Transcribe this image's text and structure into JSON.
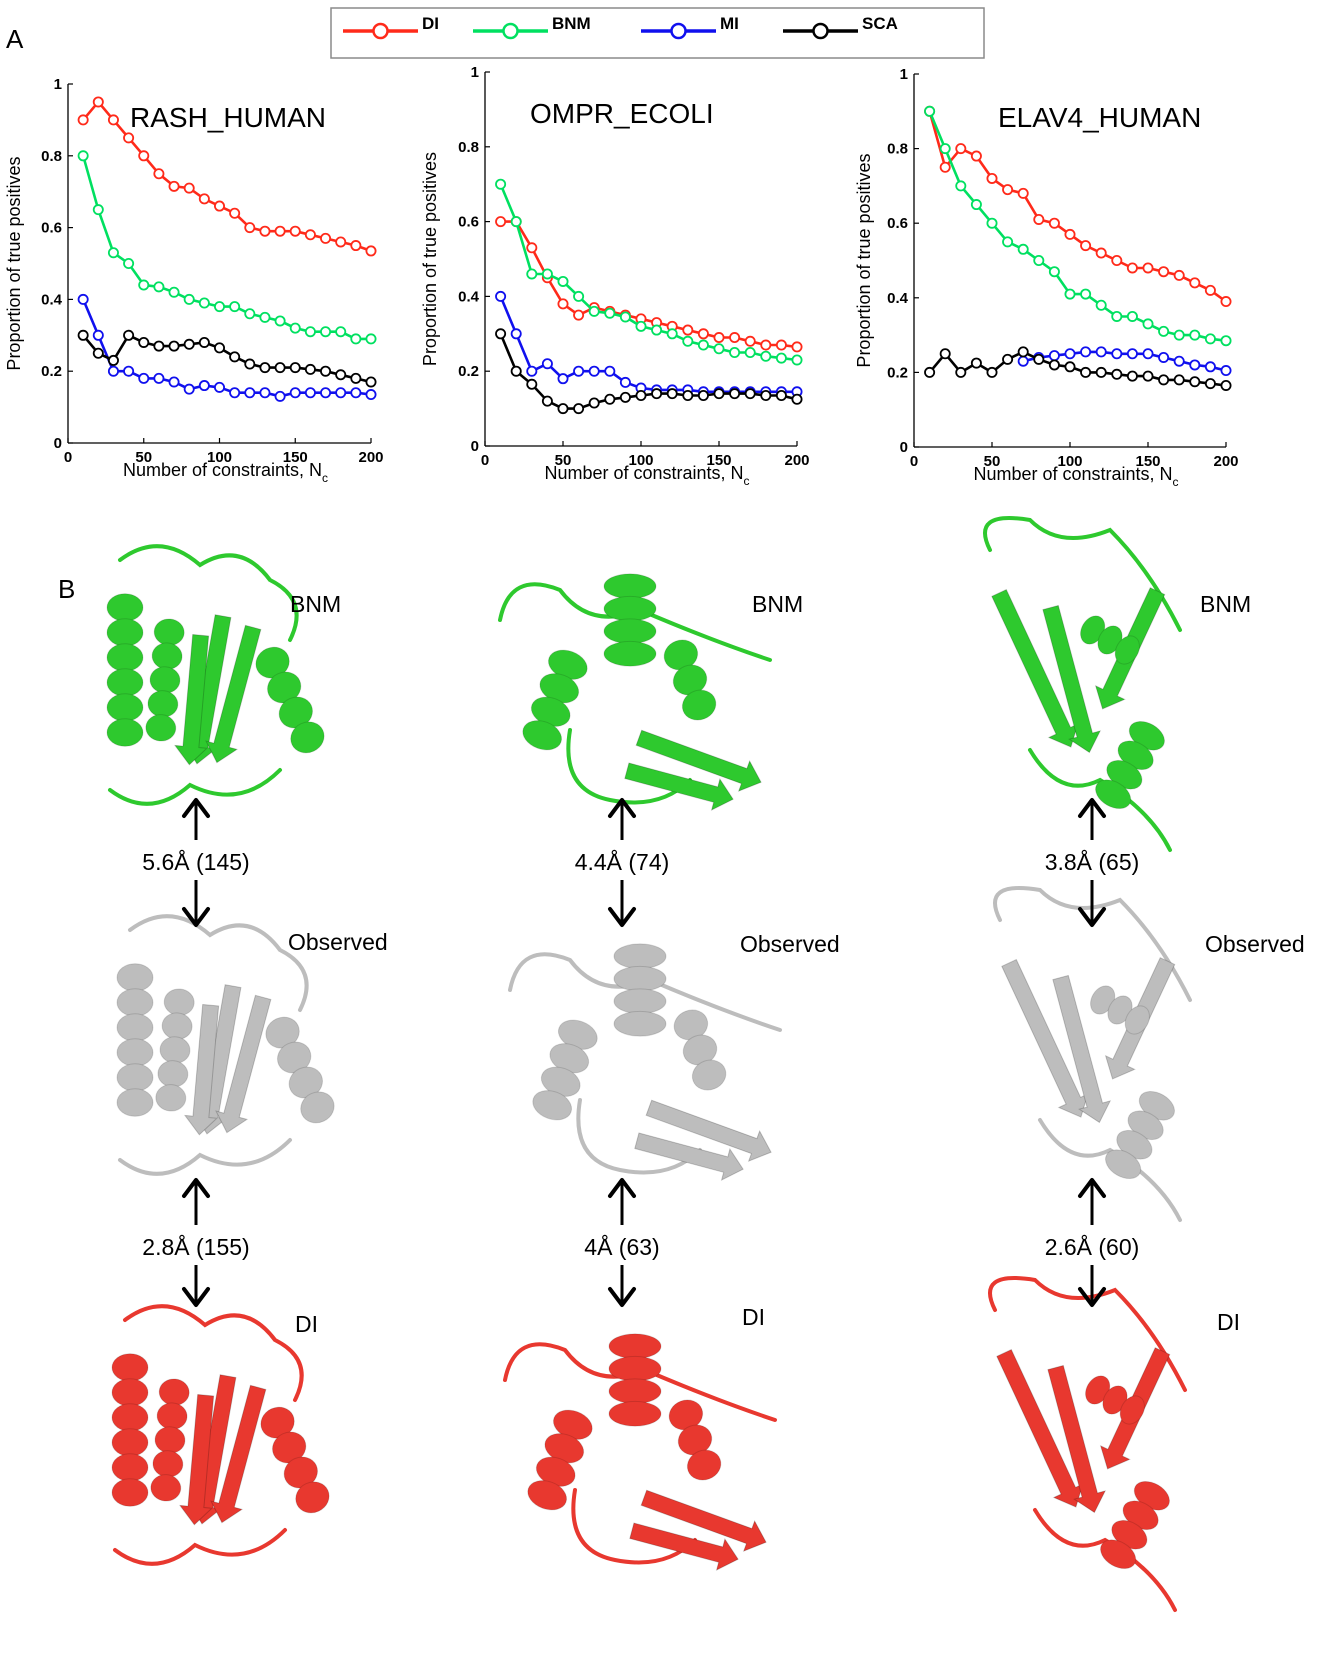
{
  "figure": {
    "panel_a_label": "A",
    "panel_b_label": "B"
  },
  "legend": {
    "entries": [
      {
        "name": "DI",
        "color": "#ff2a1a"
      },
      {
        "name": "BNM",
        "color": "#00e060"
      },
      {
        "name": "MI",
        "color": "#1010ee"
      },
      {
        "name": "SCA",
        "color": "#000000"
      }
    ]
  },
  "chart_data": [
    {
      "type": "line",
      "title": "RASH_HUMAN",
      "xlabel": "Number of constraints, N",
      "xlabel_sub": "c",
      "ylabel": "Proportion of true positives",
      "xlim": [
        0,
        200
      ],
      "ylim": [
        0,
        1
      ],
      "xticks": [
        0,
        50,
        100,
        150,
        200
      ],
      "yticks": [
        0,
        0.2,
        0.4,
        0.6,
        0.8,
        1
      ],
      "xtick_labels": [
        "0",
        "50",
        "100",
        "150",
        "200"
      ],
      "ytick_labels": [
        "0",
        "0.2",
        "0.4",
        "0.6",
        "0.8",
        "1"
      ],
      "x": [
        10,
        20,
        30,
        40,
        50,
        60,
        70,
        80,
        90,
        100,
        110,
        120,
        130,
        140,
        150,
        160,
        170,
        180,
        190,
        200
      ],
      "series": [
        {
          "name": "DI",
          "color": "#ff2a1a",
          "values": [
            0.9,
            0.95,
            0.9,
            0.85,
            0.8,
            0.75,
            0.715,
            0.71,
            0.68,
            0.66,
            0.64,
            0.6,
            0.59,
            0.59,
            0.59,
            0.58,
            0.57,
            0.56,
            0.55,
            0.535
          ]
        },
        {
          "name": "BNM",
          "color": "#00e060",
          "values": [
            0.8,
            0.65,
            0.53,
            0.5,
            0.44,
            0.435,
            0.42,
            0.4,
            0.39,
            0.38,
            0.38,
            0.36,
            0.35,
            0.34,
            0.32,
            0.31,
            0.31,
            0.31,
            0.29,
            0.29
          ]
        },
        {
          "name": "MI",
          "color": "#1010ee",
          "values": [
            0.4,
            0.3,
            0.2,
            0.2,
            0.18,
            0.18,
            0.17,
            0.15,
            0.16,
            0.155,
            0.14,
            0.14,
            0.14,
            0.13,
            0.14,
            0.14,
            0.14,
            0.14,
            0.14,
            0.135
          ]
        },
        {
          "name": "SCA",
          "color": "#000000",
          "values": [
            0.3,
            0.25,
            0.23,
            0.3,
            0.28,
            0.27,
            0.27,
            0.275,
            0.28,
            0.265,
            0.24,
            0.22,
            0.21,
            0.21,
            0.21,
            0.205,
            0.2,
            0.19,
            0.18,
            0.17
          ]
        }
      ]
    },
    {
      "type": "line",
      "title": "OMPR_ECOLI",
      "xlabel": "Number of constraints, N",
      "xlabel_sub": "c",
      "ylabel": "Proportion of true positives",
      "xlim": [
        0,
        200
      ],
      "ylim": [
        0,
        1
      ],
      "xticks": [
        0,
        50,
        100,
        150,
        200
      ],
      "yticks": [
        0,
        0.2,
        0.4,
        0.6,
        0.8,
        1
      ],
      "xtick_labels": [
        "0",
        "50",
        "100",
        "150",
        "200"
      ],
      "ytick_labels": [
        "0",
        "0.2",
        "0.4",
        "0.6",
        "0.8",
        "1"
      ],
      "x": [
        10,
        20,
        30,
        40,
        50,
        60,
        70,
        80,
        90,
        100,
        110,
        120,
        130,
        140,
        150,
        160,
        170,
        180,
        190,
        200
      ],
      "series": [
        {
          "name": "DI",
          "color": "#ff2a1a",
          "values": [
            0.6,
            0.6,
            0.53,
            0.45,
            0.38,
            0.35,
            0.37,
            0.36,
            0.35,
            0.34,
            0.33,
            0.32,
            0.31,
            0.3,
            0.29,
            0.29,
            0.28,
            0.27,
            0.27,
            0.265
          ]
        },
        {
          "name": "BNM",
          "color": "#00e060",
          "values": [
            0.7,
            0.6,
            0.46,
            0.46,
            0.44,
            0.4,
            0.36,
            0.355,
            0.345,
            0.32,
            0.31,
            0.3,
            0.28,
            0.27,
            0.26,
            0.25,
            0.25,
            0.24,
            0.235,
            0.23
          ]
        },
        {
          "name": "MI",
          "color": "#1010ee",
          "values": [
            0.4,
            0.3,
            0.2,
            0.22,
            0.18,
            0.2,
            0.2,
            0.2,
            0.17,
            0.155,
            0.15,
            0.15,
            0.15,
            0.145,
            0.145,
            0.145,
            0.145,
            0.145,
            0.145,
            0.145
          ]
        },
        {
          "name": "SCA",
          "color": "#000000",
          "values": [
            0.3,
            0.2,
            0.165,
            0.12,
            0.1,
            0.1,
            0.115,
            0.125,
            0.13,
            0.135,
            0.14,
            0.14,
            0.135,
            0.135,
            0.14,
            0.14,
            0.14,
            0.135,
            0.135,
            0.125
          ]
        }
      ]
    },
    {
      "type": "line",
      "title": "ELAV4_HUMAN",
      "xlabel": "Number of constraints, N",
      "xlabel_sub": "c",
      "ylabel": "Proportion of true positives",
      "xlim": [
        0,
        200
      ],
      "ylim": [
        0,
        1
      ],
      "xticks": [
        0,
        50,
        100,
        150,
        200
      ],
      "yticks": [
        0,
        0.2,
        0.4,
        0.6,
        0.8,
        1
      ],
      "xtick_labels": [
        "0",
        "50",
        "100",
        "150",
        "200"
      ],
      "ytick_labels": [
        "0",
        "0.2",
        "0.4",
        "0.6",
        "0.8",
        "1"
      ],
      "x": [
        10,
        20,
        30,
        40,
        50,
        60,
        70,
        80,
        90,
        100,
        110,
        120,
        130,
        140,
        150,
        160,
        170,
        180,
        190,
        200
      ],
      "series": [
        {
          "name": "DI",
          "color": "#ff2a1a",
          "values": [
            0.9,
            0.75,
            0.8,
            0.78,
            0.72,
            0.69,
            0.68,
            0.61,
            0.6,
            0.57,
            0.54,
            0.52,
            0.5,
            0.48,
            0.48,
            0.47,
            0.46,
            0.44,
            0.42,
            0.39
          ]
        },
        {
          "name": "BNM",
          "color": "#00e060",
          "values": [
            0.9,
            0.8,
            0.7,
            0.65,
            0.6,
            0.55,
            0.53,
            0.5,
            0.47,
            0.41,
            0.41,
            0.38,
            0.35,
            0.35,
            0.33,
            0.31,
            0.3,
            0.3,
            0.29,
            0.285
          ]
        },
        {
          "name": "MI",
          "color": "#1010ee",
          "values": [
            null,
            null,
            null,
            null,
            null,
            null,
            0.23,
            0.24,
            0.245,
            0.25,
            0.255,
            0.255,
            0.25,
            0.25,
            0.25,
            0.24,
            0.23,
            0.22,
            0.215,
            0.205
          ]
        },
        {
          "name": "SCA",
          "color": "#000000",
          "values": [
            0.2,
            0.25,
            0.2,
            0.225,
            0.2,
            0.235,
            0.255,
            0.235,
            0.22,
            0.215,
            0.2,
            0.2,
            0.195,
            0.19,
            0.19,
            0.18,
            0.18,
            0.175,
            0.17,
            0.165
          ]
        }
      ]
    }
  ],
  "structures": {
    "labels": {
      "bnm": "BNM",
      "observed": "Observed",
      "di": "DI"
    },
    "colors": {
      "bnm": "#2ec92e",
      "observed": "#bdbdbd",
      "di": "#e8382f"
    },
    "columns": [
      {
        "protein": "RASH_HUMAN",
        "bnm_distance": "5.6Å (145)",
        "di_distance": "2.8Å (155)"
      },
      {
        "protein": "OMPR_ECOLI",
        "bnm_distance": "4.4Å (74)",
        "di_distance": "4Å (63)"
      },
      {
        "protein": "ELAV4_HUMAN",
        "bnm_distance": "3.8Å (65)",
        "di_distance": "2.6Å (60)"
      }
    ]
  }
}
